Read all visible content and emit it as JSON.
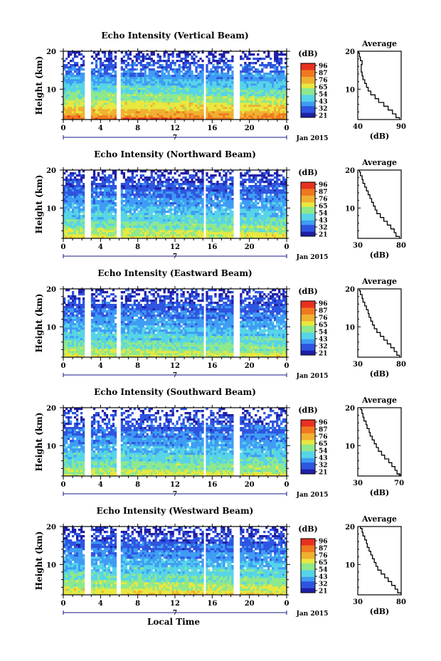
{
  "figure": {
    "xaxis_title": "Local Time",
    "date_label": "Jan 2015",
    "day_label": "7",
    "ylabel": "Height (km)",
    "colorbar_unit": "(dB)",
    "colorbar_ticks": [
      "96",
      "87",
      "76",
      "65",
      "54",
      "43",
      "32",
      "21"
    ],
    "colors": {
      "scale": [
        "#1f1fa8",
        "#2e55e0",
        "#3f9cf4",
        "#56d4e8",
        "#8ee88c",
        "#e8e840",
        "#f0b030",
        "#f07820",
        "#e83020"
      ],
      "data_gap": "#ffffff",
      "axis": "#000000",
      "profile_line": "#000000"
    }
  },
  "chart_data": [
    {
      "type": "heatmap",
      "title": "Echo Intensity (Vertical Beam)",
      "ylabel": "Height (km)",
      "x_ticks": [
        "0",
        "4",
        "8",
        "12",
        "16",
        "20",
        "0"
      ],
      "y_ticks": [
        "20",
        "10"
      ],
      "xlim": [
        0,
        24
      ],
      "ylim": [
        2,
        20
      ],
      "data_gaps_hours": [
        [
          2.3,
          3.0
        ],
        [
          5.8,
          6.2
        ],
        [
          15.0,
          15.3
        ],
        [
          18.2,
          19.0
        ]
      ],
      "colorbar_ticks": [
        "96",
        "87",
        "76",
        "65",
        "54",
        "43",
        "32",
        "21"
      ],
      "profile": {
        "title": "Average",
        "xlabel": "(dB)",
        "x_ticks": [
          "40",
          "90"
        ],
        "y_ticks": [
          "20",
          "10"
        ],
        "xlim": [
          40,
          90
        ],
        "height_km": [
          2,
          3,
          4,
          5,
          6,
          7,
          8,
          9,
          10,
          11,
          12,
          13,
          14,
          15,
          16,
          17,
          18,
          19,
          20
        ],
        "intensity_db": [
          88,
          84,
          80,
          75,
          70,
          64,
          60,
          55,
          52,
          50,
          48,
          46,
          45,
          44,
          44,
          45,
          43,
          42,
          41
        ]
      },
      "scale": {
        "top_km": 20,
        "noise_from_km": 14,
        "hi": 88,
        "lo": 24,
        "sig_hi": 0.6,
        "sig_lo": 0.18
      }
    },
    {
      "type": "heatmap",
      "title": "Echo Intensity (Northward Beam)",
      "ylabel": "Height (km)",
      "x_ticks": [
        "0",
        "4",
        "8",
        "12",
        "16",
        "20",
        "0"
      ],
      "y_ticks": [
        "20",
        "10"
      ],
      "xlim": [
        0,
        24
      ],
      "ylim": [
        2,
        20
      ],
      "data_gaps_hours": [
        [
          2.3,
          3.0
        ],
        [
          5.8,
          6.2
        ],
        [
          15.0,
          15.3
        ],
        [
          18.2,
          19.0
        ]
      ],
      "colorbar_ticks": [
        "96",
        "87",
        "76",
        "65",
        "54",
        "43",
        "32",
        "21"
      ],
      "profile": {
        "title": "Average",
        "xlabel": "(dB)",
        "x_ticks": [
          "30",
          "80"
        ],
        "y_ticks": [
          "20",
          "10"
        ],
        "xlim": [
          30,
          80
        ],
        "height_km": [
          2,
          3,
          4,
          5,
          6,
          7,
          8,
          9,
          10,
          11,
          12,
          13,
          14,
          15,
          16,
          17,
          18,
          19,
          20
        ],
        "intensity_db": [
          78,
          74,
          72,
          68,
          64,
          60,
          56,
          52,
          50,
          48,
          46,
          44,
          42,
          40,
          38,
          36,
          35,
          33,
          32
        ]
      },
      "scale": {
        "top_km": 20,
        "noise_from_km": 16,
        "hi": 70,
        "lo": 26,
        "sig_hi": 0.5,
        "sig_lo": 0.25
      }
    },
    {
      "type": "heatmap",
      "title": "Echo Intensity (Eastward Beam)",
      "ylabel": "Height (km)",
      "x_ticks": [
        "0",
        "4",
        "8",
        "12",
        "16",
        "20",
        "0"
      ],
      "y_ticks": [
        "20",
        "10"
      ],
      "xlim": [
        0,
        24
      ],
      "ylim": [
        2,
        20
      ],
      "data_gaps_hours": [
        [
          2.3,
          3.0
        ],
        [
          5.8,
          6.2
        ],
        [
          15.0,
          15.3
        ],
        [
          18.2,
          19.0
        ]
      ],
      "colorbar_ticks": [
        "96",
        "87",
        "76",
        "65",
        "54",
        "43",
        "32",
        "21"
      ],
      "profile": {
        "title": "Average",
        "xlabel": "(dB)",
        "x_ticks": [
          "30",
          "80"
        ],
        "y_ticks": [
          "20",
          "10"
        ],
        "xlim": [
          30,
          80
        ],
        "height_km": [
          2,
          3,
          4,
          5,
          6,
          7,
          8,
          9,
          10,
          11,
          12,
          13,
          14,
          15,
          16,
          17,
          18,
          19,
          20
        ],
        "intensity_db": [
          78,
          75,
          72,
          68,
          64,
          60,
          56,
          52,
          49,
          47,
          45,
          43,
          42,
          40,
          38,
          36,
          35,
          33,
          32
        ]
      },
      "scale": {
        "top_km": 20,
        "noise_from_km": 16,
        "hi": 68,
        "lo": 26,
        "sig_hi": 0.5,
        "sig_lo": 0.28
      }
    },
    {
      "type": "heatmap",
      "title": "Echo Intensity (Southward Beam)",
      "ylabel": "Height (km)",
      "x_ticks": [
        "0",
        "4",
        "8",
        "12",
        "16",
        "20",
        "0"
      ],
      "y_ticks": [
        "20",
        "10"
      ],
      "xlim": [
        0,
        24
      ],
      "ylim": [
        2,
        20
      ],
      "data_gaps_hours": [
        [
          2.3,
          3.0
        ],
        [
          5.8,
          6.2
        ],
        [
          15.0,
          15.3
        ],
        [
          18.2,
          19.0
        ]
      ],
      "colorbar_ticks": [
        "96",
        "87",
        "76",
        "65",
        "54",
        "43",
        "32",
        "21"
      ],
      "profile": {
        "title": "Average",
        "xlabel": "(dB)",
        "x_ticks": [
          "30",
          "70"
        ],
        "y_ticks": [
          "20",
          "10"
        ],
        "xlim": [
          30,
          72
        ],
        "height_km": [
          2,
          3,
          4,
          5,
          6,
          7,
          8,
          9,
          10,
          11,
          12,
          13,
          14,
          15,
          16,
          17,
          18,
          19,
          20
        ],
        "intensity_db": [
          71,
          68,
          66,
          63,
          60,
          56,
          53,
          50,
          48,
          46,
          44,
          42,
          41,
          39,
          38,
          36,
          35,
          34,
          33
        ]
      },
      "scale": {
        "top_km": 20,
        "noise_from_km": 15,
        "hi": 68,
        "lo": 26,
        "sig_hi": 0.45,
        "sig_lo": 0.32
      }
    },
    {
      "type": "heatmap",
      "title": "Echo Intensity (Westward Beam)",
      "ylabel": "Height (km)",
      "x_ticks": [
        "0",
        "4",
        "8",
        "12",
        "16",
        "20",
        "0"
      ],
      "y_ticks": [
        "20",
        "10"
      ],
      "xlim": [
        0,
        24
      ],
      "ylim": [
        2,
        20
      ],
      "data_gaps_hours": [
        [
          2.3,
          3.0
        ],
        [
          5.8,
          6.2
        ],
        [
          15.0,
          15.3
        ],
        [
          18.2,
          19.0
        ]
      ],
      "colorbar_ticks": [
        "96",
        "87",
        "76",
        "65",
        "54",
        "43",
        "32",
        "21"
      ],
      "profile": {
        "title": "Average",
        "xlabel": "(dB)",
        "x_ticks": [
          "30",
          "80"
        ],
        "y_ticks": [
          "20",
          "10"
        ],
        "xlim": [
          30,
          80
        ],
        "height_km": [
          2,
          3,
          4,
          5,
          6,
          7,
          8,
          9,
          10,
          11,
          12,
          13,
          14,
          15,
          16,
          17,
          18,
          19,
          20
        ],
        "intensity_db": [
          80,
          76,
          73,
          69,
          65,
          61,
          57,
          53,
          51,
          49,
          47,
          45,
          43,
          41,
          40,
          38,
          36,
          35,
          33
        ]
      },
      "scale": {
        "top_km": 20,
        "noise_from_km": 16,
        "hi": 72,
        "lo": 26,
        "sig_hi": 0.5,
        "sig_lo": 0.25
      }
    }
  ]
}
